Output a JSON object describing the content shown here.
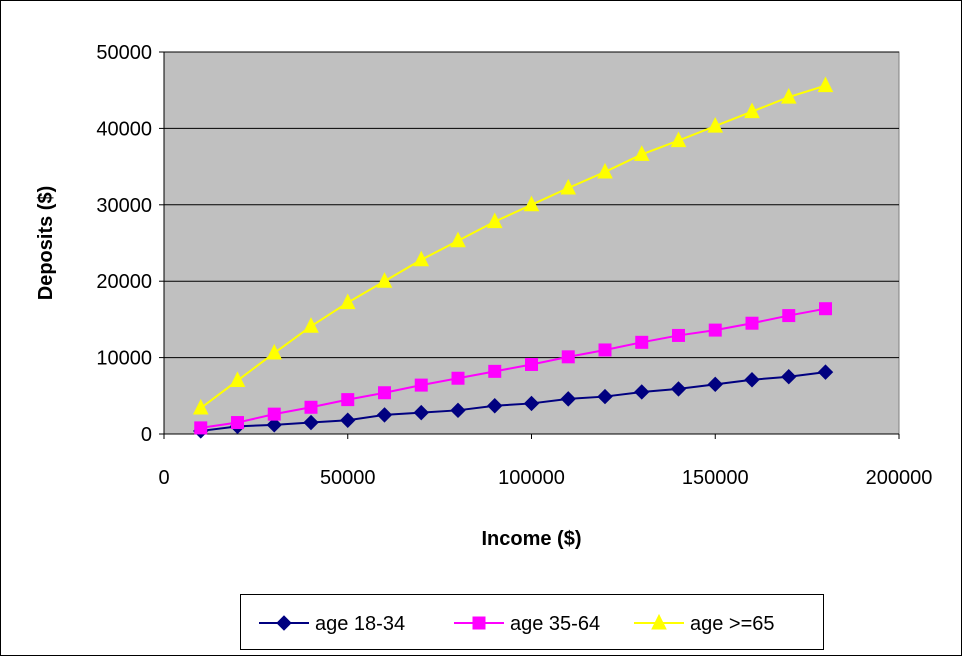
{
  "chart_data": {
    "type": "line",
    "title": "",
    "xlabel": "Income ($)",
    "ylabel": "Deposits ($)",
    "xlim": [
      0,
      200000
    ],
    "ylim": [
      0,
      50000
    ],
    "x_ticks": [
      "0",
      "50000",
      "100000",
      "150000",
      "200000"
    ],
    "y_ticks": [
      "0",
      "10000",
      "20000",
      "30000",
      "40000",
      "50000"
    ],
    "grid": "horizontal",
    "plot_background": "#c0c0c0",
    "legend_position": "bottom",
    "x": [
      10000,
      20000,
      30000,
      40000,
      50000,
      60000,
      70000,
      80000,
      90000,
      100000,
      110000,
      120000,
      130000,
      140000,
      150000,
      160000,
      170000,
      180000
    ],
    "series": [
      {
        "name": "age 18-34",
        "color": "#000080",
        "marker": "diamond",
        "values": [
          400,
          1000,
          1200,
          1500,
          1800,
          2500,
          2800,
          3100,
          3700,
          4000,
          4600,
          4900,
          5500,
          5900,
          6500,
          7100,
          7500,
          8100
        ]
      },
      {
        "name": "age 35-64",
        "color": "#ff00ff",
        "marker": "square",
        "values": [
          800,
          1500,
          2600,
          3500,
          4500,
          5400,
          6400,
          7300,
          8200,
          9100,
          10100,
          11000,
          12000,
          12900,
          13600,
          14500,
          15500,
          16400
        ]
      },
      {
        "name": "age >=65",
        "color": "#ffff00",
        "marker": "triangle",
        "values": [
          3400,
          7000,
          10600,
          14100,
          17200,
          20000,
          22800,
          25300,
          27800,
          30000,
          32200,
          34300,
          36600,
          38400,
          40300,
          42200,
          44100,
          45600
        ]
      }
    ]
  }
}
